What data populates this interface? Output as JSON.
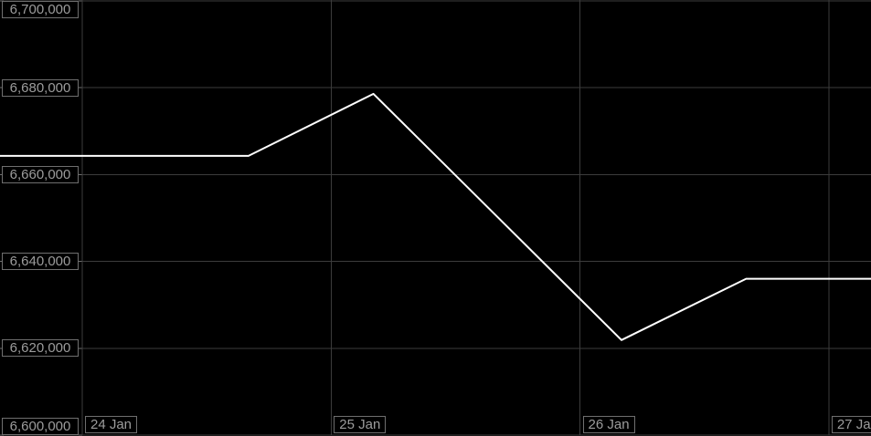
{
  "theme": {
    "background": "#000000",
    "grid_color": "#3c3c3c",
    "tick_color": "#6f6f6f",
    "line_color": "#ffffff",
    "label_text_color": "#9c9c9c",
    "label_border_color": "#6f6f6f",
    "label_background": "#000000"
  },
  "chart_data": {
    "type": "line",
    "title": "",
    "xlabel": "",
    "ylabel": "",
    "grid": true,
    "legend": false,
    "x_axis": {
      "tick_labels": [
        "24 Jan",
        "25 Jan",
        "26 Jan",
        "27 Jan"
      ],
      "tick_positions_days": [
        0,
        1,
        2,
        3
      ],
      "range_days": [
        -0.3305,
        3.1695
      ]
    },
    "y_axis": {
      "tick_labels": [
        "6,600,000",
        "6,620,000",
        "6,640,000",
        "6,660,000",
        "6,680,000",
        "6,700,000"
      ],
      "tick_values": [
        6600000,
        6620000,
        6640000,
        6660000,
        6680000,
        6700000
      ],
      "range": [
        6600000,
        6700000
      ]
    },
    "series": [
      {
        "points": [
          {
            "x_days": -0.331,
            "value": 6664300
          },
          {
            "x_days": 0.668,
            "value": 6664300
          },
          {
            "x_days": 1.17,
            "value": 6678600
          },
          {
            "x_days": 2.167,
            "value": 6621900
          },
          {
            "x_days": 2.668,
            "value": 6636000
          },
          {
            "x_days": 3.17,
            "value": 6636000
          }
        ]
      }
    ]
  }
}
